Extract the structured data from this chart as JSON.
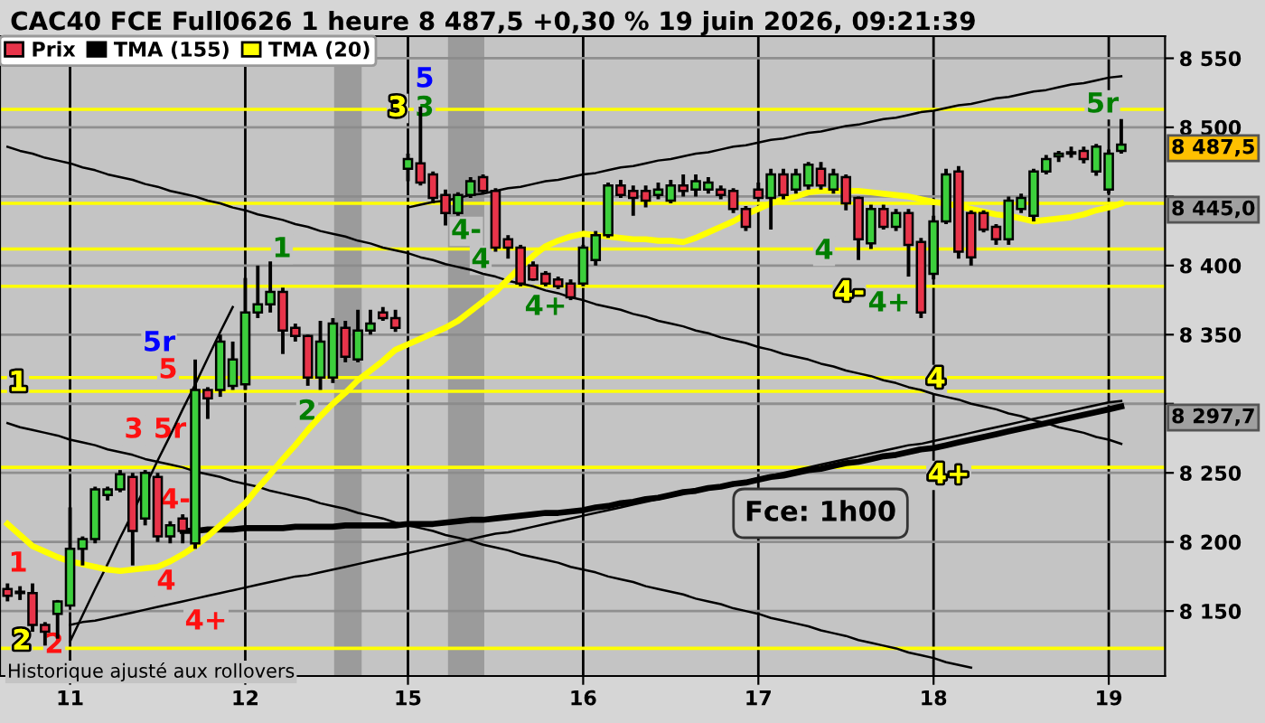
{
  "chart_data": {
    "type": "candlestick",
    "title": "CAC40 FCE Full0626 1 heure 8 487,5 +0,30 % 19 juin 2026, 09:21:39",
    "categories": [
      null,
      null,
      null,
      null,
      null,
      "11",
      null,
      null,
      null,
      null,
      null,
      null,
      null,
      null,
      null,
      null,
      null,
      null,
      null,
      "12",
      null,
      null,
      null,
      null,
      null,
      null,
      null,
      null,
      null,
      null,
      null,
      null,
      "15",
      null,
      null,
      null,
      null,
      null,
      null,
      null,
      null,
      null,
      null,
      null,
      null,
      null,
      "16",
      null,
      null,
      null,
      null,
      null,
      null,
      null,
      null,
      null,
      null,
      null,
      null,
      null,
      "17",
      null,
      null,
      null,
      null,
      null,
      null,
      null,
      null,
      null,
      null,
      null,
      null,
      null,
      "18",
      null,
      null,
      null,
      null,
      null,
      null,
      null,
      null,
      null,
      null,
      null,
      null,
      null,
      "19",
      null
    ],
    "series": [
      {
        "name": "Prix",
        "ohlc": [
          [
            8166,
            8170,
            8157,
            8161
          ],
          [
            8163,
            8168,
            8158,
            8164
          ],
          [
            8163,
            8170,
            8135,
            8140
          ],
          [
            8140,
            8142,
            8125,
            8135
          ],
          [
            8148,
            8158,
            8130,
            8157
          ],
          [
            8154,
            8225,
            8154,
            8195
          ],
          [
            8195,
            8204,
            8183,
            8202
          ],
          [
            8202,
            8240,
            8199,
            8238
          ],
          [
            8234,
            8240,
            8230,
            8238
          ],
          [
            8238,
            8252,
            8236,
            8249
          ],
          [
            8247,
            8250,
            8183,
            8208
          ],
          [
            8217,
            8252,
            8212,
            8250
          ],
          [
            8247,
            8250,
            8200,
            8204
          ],
          [
            8204,
            8215,
            8199,
            8212
          ],
          [
            8217,
            8220,
            8199,
            8208
          ],
          [
            8199,
            8332,
            8195,
            8310
          ],
          [
            8310,
            8312,
            8289,
            8304
          ],
          [
            8310,
            8350,
            8305,
            8345
          ],
          [
            8313,
            8345,
            8310,
            8332
          ],
          [
            8314,
            8391,
            8310,
            8366
          ],
          [
            8366,
            8400,
            8362,
            8372
          ],
          [
            8372,
            8403,
            8366,
            8381
          ],
          [
            8381,
            8384,
            8336,
            8353
          ],
          [
            8355,
            8358,
            8345,
            8349
          ],
          [
            8349,
            8350,
            8313,
            8319
          ],
          [
            8319,
            8360,
            8310,
            8345
          ],
          [
            8319,
            8362,
            8315,
            8358
          ],
          [
            8355,
            8360,
            8330,
            8334
          ],
          [
            8332,
            8368,
            8330,
            8353
          ],
          [
            8353,
            8368,
            8350,
            8358
          ],
          [
            8366,
            8370,
            8360,
            8362
          ],
          [
            8362,
            8368,
            8352,
            8355
          ],
          [
            8470,
            8481,
            8461,
            8477
          ],
          [
            8474,
            8515,
            8458,
            8460
          ],
          [
            8466,
            8468,
            8445,
            8449
          ],
          [
            8451,
            8455,
            8429,
            8438
          ],
          [
            8438,
            8453,
            8436,
            8451
          ],
          [
            8451,
            8464,
            8449,
            8461
          ],
          [
            8464,
            8466,
            8452,
            8454
          ],
          [
            8454,
            8456,
            8410,
            8413
          ],
          [
            8419,
            8422,
            8405,
            8413
          ],
          [
            8413,
            8415,
            8385,
            8387
          ],
          [
            8400,
            8403,
            8389,
            8390
          ],
          [
            8394,
            8396,
            8385,
            8387
          ],
          [
            8390,
            8392,
            8383,
            8385
          ],
          [
            8387,
            8390,
            8375,
            8377
          ],
          [
            8387,
            8415,
            8385,
            8413
          ],
          [
            8404,
            8425,
            8400,
            8422
          ],
          [
            8422,
            8460,
            8420,
            8458
          ],
          [
            8458,
            8462,
            8449,
            8451
          ],
          [
            8454,
            8458,
            8436,
            8449
          ],
          [
            8454,
            8458,
            8442,
            8447
          ],
          [
            8451,
            8460,
            8448,
            8455
          ],
          [
            8447,
            8462,
            8445,
            8458
          ],
          [
            8458,
            8466,
            8450,
            8454
          ],
          [
            8455,
            8466,
            8450,
            8461
          ],
          [
            8455,
            8464,
            8452,
            8460
          ],
          [
            8455,
            8458,
            8448,
            8451
          ],
          [
            8454,
            8456,
            8438,
            8441
          ],
          [
            8441,
            8443,
            8425,
            8428
          ],
          [
            8455,
            8460,
            8449,
            8449
          ],
          [
            8449,
            8470,
            8426,
            8466
          ],
          [
            8466,
            8470,
            8448,
            8451
          ],
          [
            8455,
            8470,
            8452,
            8466
          ],
          [
            8458,
            8475,
            8455,
            8473
          ],
          [
            8470,
            8475,
            8455,
            8458
          ],
          [
            8455,
            8470,
            8452,
            8466
          ],
          [
            8464,
            8466,
            8440,
            8445
          ],
          [
            8449,
            8450,
            8404,
            8419
          ],
          [
            8416,
            8444,
            8412,
            8441
          ],
          [
            8441,
            8444,
            8426,
            8428
          ],
          [
            8428,
            8441,
            8425,
            8438
          ],
          [
            8438,
            8441,
            8392,
            8415
          ],
          [
            8417,
            8420,
            8362,
            8366
          ],
          [
            8394,
            8436,
            8390,
            8432
          ],
          [
            8432,
            8470,
            8430,
            8466
          ],
          [
            8468,
            8472,
            8405,
            8410
          ],
          [
            8438,
            8440,
            8400,
            8406
          ],
          [
            8438,
            8440,
            8424,
            8426
          ],
          [
            8428,
            8430,
            8415,
            8419
          ],
          [
            8419,
            8450,
            8415,
            8447
          ],
          [
            8441,
            8452,
            8438,
            8449
          ],
          [
            8436,
            8470,
            8432,
            8468
          ],
          [
            8468,
            8480,
            8466,
            8477
          ],
          [
            8479,
            8483,
            8475,
            8481
          ],
          [
            8481,
            8486,
            8478,
            8482
          ],
          [
            8483,
            8486,
            8474,
            8477
          ],
          [
            8468,
            8488,
            8465,
            8486
          ],
          [
            8455,
            8484,
            8452,
            8481
          ],
          [
            8483,
            8506,
            8481,
            8487.5
          ]
        ],
        "colors": [
          "#e8344a",
          "#3ccf3c",
          "#e8344a",
          "#e8344a",
          "#3ccf3c",
          "#3ccf3c",
          "#3ccf3c",
          "#3ccf3c",
          "#3ccf3c",
          "#3ccf3c",
          "#e8344a",
          "#3ccf3c",
          "#e8344a",
          "#3ccf3c",
          "#e8344a",
          "#3ccf3c",
          "#e8344a",
          "#3ccf3c",
          "#3ccf3c",
          "#3ccf3c",
          "#3ccf3c",
          "#3ccf3c",
          "#e8344a",
          "#e8344a",
          "#e8344a",
          "#3ccf3c",
          "#3ccf3c",
          "#e8344a",
          "#3ccf3c",
          "#3ccf3c",
          "#e8344a",
          "#e8344a",
          "#3ccf3c",
          "#e8344a",
          "#e8344a",
          "#e8344a",
          "#3ccf3c",
          "#3ccf3c",
          "#e8344a",
          "#e8344a",
          "#e8344a",
          "#e8344a",
          "#e8344a",
          "#e8344a",
          "#e8344a",
          "#e8344a",
          "#3ccf3c",
          "#3ccf3c",
          "#3ccf3c",
          "#e8344a",
          "#e8344a",
          "#e8344a",
          "#3ccf3c",
          "#3ccf3c",
          "#e8344a",
          "#3ccf3c",
          "#3ccf3c",
          "#e8344a",
          "#e8344a",
          "#e8344a",
          "#e8344a",
          "#3ccf3c",
          "#e8344a",
          "#3ccf3c",
          "#3ccf3c",
          "#e8344a",
          "#3ccf3c",
          "#e8344a",
          "#e8344a",
          "#3ccf3c",
          "#e8344a",
          "#3ccf3c",
          "#e8344a",
          "#e8344a",
          "#3ccf3c",
          "#3ccf3c",
          "#e8344a",
          "#e8344a",
          "#e8344a",
          "#e8344a",
          "#3ccf3c",
          "#3ccf3c",
          "#3ccf3c",
          "#3ccf3c",
          "#3ccf3c",
          "#3ccf3c",
          "#e8344a",
          "#3ccf3c",
          "#3ccf3c",
          "#3ccf3c"
        ]
      },
      {
        "name": "TMA (155)",
        "type": "line",
        "color": "#000000",
        "values": [
          null,
          null,
          null,
          null,
          null,
          null,
          null,
          null,
          null,
          null,
          null,
          null,
          null,
          null,
          8208,
          8208,
          8209,
          8209,
          8209,
          8210,
          8210,
          8210,
          8210,
          8211,
          8211,
          8211,
          8211,
          8212,
          8212,
          8212,
          8212,
          8212,
          8213,
          8213,
          8213,
          8214,
          8215,
          8216,
          8216,
          8217,
          8218,
          8219,
          8220,
          8221,
          8221,
          8222,
          8223,
          8225,
          8226,
          8228,
          8229,
          8231,
          8232,
          8234,
          8236,
          8237,
          8239,
          8240,
          8242,
          8243,
          8245,
          8247,
          8248,
          8250,
          8252,
          8253,
          8255,
          8257,
          8258,
          8260,
          8262,
          8263,
          8265,
          8267,
          8268,
          8270,
          8272,
          8274,
          8276,
          8278,
          8280,
          8282,
          8284,
          8286,
          8288,
          8290,
          8292,
          8294,
          8296,
          8298
        ]
      },
      {
        "name": "TMA (20)",
        "type": "line",
        "color": "#ffff00",
        "values": [
          8213,
          8205,
          8197,
          8193,
          8189,
          8186,
          8184,
          8182,
          8180,
          8179,
          8180,
          8181,
          8182,
          8186,
          8191,
          8197,
          8204,
          8212,
          8220,
          8228,
          8239,
          8249,
          8260,
          8270,
          8281,
          8291,
          8300,
          8308,
          8317,
          8324,
          8331,
          8339,
          8343,
          8347,
          8351,
          8355,
          8360,
          8367,
          8374,
          8381,
          8390,
          8399,
          8407,
          8414,
          8418,
          8421,
          8423,
          8422,
          8421,
          8420,
          8419,
          8419,
          8418,
          8418,
          8417,
          8420,
          8424,
          8428,
          8432,
          8437,
          8441,
          8445,
          8448,
          8450,
          8453,
          8454,
          8454,
          8454,
          8454,
          8453,
          8452,
          8451,
          8450,
          8448,
          8446,
          8445,
          8443,
          8441,
          8439,
          8437,
          8436,
          8434,
          8432,
          8433,
          8434,
          8435,
          8437,
          8440,
          8442,
          8445
        ]
      },
      {
        "type": "line",
        "color": "#000000",
        "values": [
          8486,
          8483,
          8481,
          8478,
          8476,
          8474,
          8471,
          8469,
          8466,
          8464,
          8462,
          8459,
          8457,
          8454,
          8452,
          8450,
          8447,
          8445,
          8442,
          8440,
          8437,
          8435,
          8433,
          8430,
          8428,
          8425,
          8423,
          8421,
          8418,
          8416,
          8413,
          8411,
          8409,
          8406,
          8404,
          8401,
          8399,
          8397,
          8394,
          8392,
          8389,
          8387,
          8385,
          8382,
          8380,
          8377,
          8375,
          8372,
          8370,
          8368,
          8365,
          8363,
          8360,
          8358,
          8356,
          8353,
          8351,
          8348,
          8346,
          8344,
          8341,
          8339,
          8336,
          8334,
          8332,
          8329,
          8327,
          8324,
          8322,
          8320,
          8317,
          8315,
          8312,
          8310,
          8307,
          8305,
          8303,
          8300,
          8298,
          8296,
          8293,
          8291,
          8288,
          8286,
          8283,
          8281,
          8279,
          8276,
          8274,
          8271
        ]
      },
      {
        "type": "line",
        "color": "#000000",
        "values": [
          8286,
          8283,
          8281,
          8279,
          8277,
          8274,
          8272,
          8270,
          8267,
          8265,
          8263,
          8260,
          8258,
          8256,
          8254,
          8251,
          8249,
          8247,
          8244,
          8242,
          8240,
          8237,
          8235,
          8233,
          8231,
          8228,
          8226,
          8224,
          8221,
          8219,
          8217,
          8214,
          8212,
          8210,
          8208,
          8205,
          8203,
          8201,
          8198,
          8196,
          8194,
          8191,
          8189,
          8187,
          8185,
          8182,
          8180,
          8178,
          8175,
          8173,
          8171,
          8168,
          8166,
          8164,
          8162,
          8159,
          8157,
          8155,
          8152,
          8150,
          8148,
          8145,
          8143,
          8141,
          8139,
          8136,
          8134,
          8132,
          8129,
          8127,
          8125,
          8123,
          8120,
          8118,
          8116,
          8113,
          8111,
          8109,
          null,
          null,
          null,
          null,
          null,
          null,
          null,
          null,
          null,
          null,
          null,
          null
        ]
      },
      {
        "type": "line",
        "color": "#000000",
        "values": [
          null,
          null,
          null,
          null,
          null,
          8140,
          8142,
          8143,
          8145,
          8147,
          8149,
          8151,
          8153,
          8155,
          8157,
          8159,
          8161,
          8163,
          8165,
          8167,
          8169,
          8171,
          8173,
          8175,
          8176,
          8178,
          8180,
          8182,
          8184,
          8186,
          8188,
          8190,
          8192,
          8194,
          8196,
          8198,
          8200,
          8202,
          8204,
          8206,
          8207,
          8209,
          8211,
          8213,
          8215,
          8217,
          8219,
          8221,
          8223,
          8225,
          8227,
          8229,
          8231,
          8233,
          8235,
          8237,
          8238,
          8240,
          8242,
          8244,
          8246,
          8248,
          8250,
          8252,
          8254,
          8256,
          8258,
          8260,
          8262,
          8264,
          8266,
          8268,
          8270,
          8271,
          8273,
          8275,
          8277,
          8279,
          8281,
          8283,
          8285,
          8287,
          8289,
          8291,
          8293,
          8295,
          8297,
          8299,
          8301,
          8302
        ]
      },
      {
        "type": "line",
        "color": "#000000",
        "values": [
          null,
          null,
          null,
          null,
          null,
          null,
          null,
          null,
          null,
          null,
          null,
          null,
          null,
          null,
          null,
          null,
          null,
          null,
          null,
          null,
          null,
          null,
          null,
          null,
          null,
          null,
          null,
          null,
          null,
          null,
          null,
          null,
          8442,
          8444,
          8446,
          8447,
          8449,
          8451,
          8452,
          8454,
          8456,
          8457,
          8459,
          8461,
          8462,
          8464,
          8466,
          8467,
          8469,
          8471,
          8472,
          8474,
          8476,
          8477,
          8479,
          8481,
          8482,
          8484,
          8486,
          8487,
          8489,
          8491,
          8492,
          8494,
          8496,
          8497,
          8499,
          8501,
          8502,
          8504,
          8506,
          8507,
          8509,
          8511,
          8512,
          8514,
          8516,
          8517,
          8519,
          8521,
          8522,
          8524,
          8526,
          8527,
          8529,
          8531,
          8532,
          8534,
          8536,
          8537
        ]
      },
      {
        "type": "line",
        "color": "#000000",
        "values": [
          null,
          null,
          null,
          null,
          null,
          8128,
          8147,
          8166,
          8184,
          8203,
          8221,
          8240,
          8259,
          8277,
          8296,
          8314,
          8333,
          8352,
          8370,
          null,
          null,
          null,
          null,
          null,
          null,
          null,
          null,
          null,
          null,
          null,
          null,
          null,
          null,
          null,
          null,
          null,
          null,
          null,
          null,
          null,
          null,
          null,
          null,
          null,
          null,
          null,
          null,
          null,
          null,
          null,
          null,
          null,
          null,
          null,
          null,
          null,
          null,
          null,
          null,
          null,
          null,
          null,
          null,
          null,
          null,
          null,
          null,
          null,
          null,
          null,
          null,
          null,
          null,
          null,
          null,
          null,
          null,
          null,
          null,
          null,
          null,
          null,
          null,
          null,
          null,
          null,
          null,
          null,
          null,
          null
        ]
      }
    ],
    "ylim": [
      8103,
      8566
    ],
    "yticks": [
      {
        "value": 8150,
        "label": "8 150"
      },
      {
        "value": 8200,
        "label": "8 200"
      },
      {
        "value": 8250,
        "label": "8 250"
      },
      {
        "value": 8300,
        "label": null
      },
      {
        "value": 8350,
        "label": "8 350"
      },
      {
        "value": 8400,
        "label": "8 400"
      },
      {
        "value": 8450,
        "label": null
      },
      {
        "value": 8500,
        "label": "8 500"
      },
      {
        "value": 8550,
        "label": "8 550"
      }
    ],
    "grid": true,
    "legend": "top left",
    "ref_lines": [
      {
        "axis": "y",
        "value": 8513,
        "color": "#ffff00"
      },
      {
        "axis": "y",
        "value": 8445,
        "color": "#ffff00"
      },
      {
        "axis": "y",
        "value": 8412,
        "color": "#ffff00"
      },
      {
        "axis": "y",
        "value": 8385,
        "color": "#ffff00"
      },
      {
        "axis": "y",
        "value": 8319,
        "color": "#ffff00"
      },
      {
        "axis": "y",
        "value": 8309,
        "color": "#ffff00"
      },
      {
        "axis": "y",
        "value": 8254,
        "color": "#ffff00"
      },
      {
        "axis": "y",
        "value": 8123,
        "color": "#ffff00"
      }
    ],
    "annotations": [
      "1",
      "2",
      "2",
      "1",
      "3",
      "5r",
      "5r",
      "5",
      "4-",
      "4",
      "4+",
      "1",
      "2",
      "3",
      "3",
      "5",
      "4-",
      "4",
      "4+",
      "4",
      "4-",
      "4+",
      "4",
      "4+",
      "5r",
      "8 487,5",
      "8 445,0",
      "8 297,7",
      "Fce: 1h00",
      "Historique ajusté aux rollovers"
    ]
  }
}
